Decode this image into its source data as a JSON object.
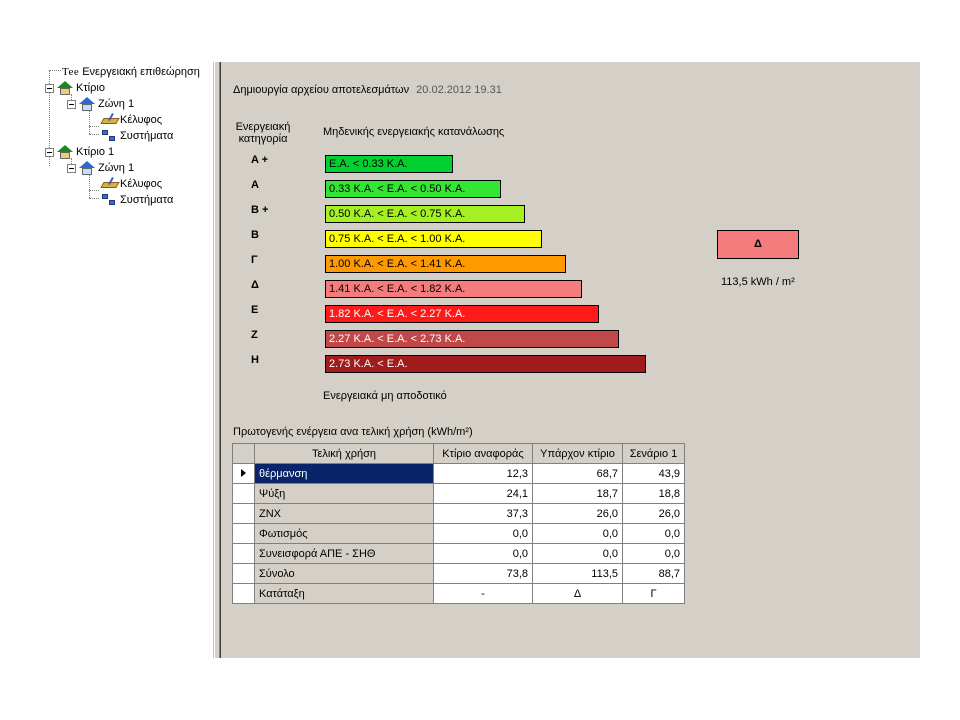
{
  "tree": {
    "root_prefix": "Tee",
    "root_label": "Ενεργειακή επιθεώρηση",
    "nodes": [
      {
        "label": "Κτίριο"
      },
      {
        "label": "Ζώνη 1"
      },
      {
        "label": "Κέλυφος"
      },
      {
        "label": "Συστήματα"
      },
      {
        "label": "Κτίριο 1"
      },
      {
        "label": "Ζώνη 1"
      },
      {
        "label": "Κέλυφος"
      },
      {
        "label": "Συστήματα"
      }
    ]
  },
  "main": {
    "file_created_label": "Δημιουργία αρχείου αποτελεσμάτων",
    "file_created_date": "20.02.2012 19.31",
    "category_header_line1": "Ενεργειακή",
    "category_header_line2": "κατηγορία",
    "zero_consumption_label": "Μηδενικής ενεργειακής κατανάλωσης",
    "non_efficient_label": "Ενεργειακά μη αποδοτικό",
    "rating_letter": "Δ",
    "rating_value": "113,5 kWh / m²",
    "categories": [
      {
        "letter": "A +",
        "range": "Ε.Α. < 0.33 Κ.Α.",
        "color": "#00d030"
      },
      {
        "letter": "A",
        "range": "0.33 Κ.Α. < Ε.Α. < 0.50 Κ.Α.",
        "color": "#33e633"
      },
      {
        "letter": "B +",
        "range": "0.50 Κ.Α. < Ε.Α. < 0.75 Κ.Α.",
        "color": "#a4f020"
      },
      {
        "letter": "B",
        "range": "0.75 Κ.Α. < Ε.Α. < 1.00 Κ.Α.",
        "color": "#ffff00"
      },
      {
        "letter": "Γ",
        "range": "1.00 Κ.Α. < Ε.Α. < 1.41 Κ.Α.",
        "color": "#ff9900"
      },
      {
        "letter": "Δ",
        "range": "1.41 Κ.Α. < Ε.Α. < 1.82 Κ.Α.",
        "color": "#f47c7c"
      },
      {
        "letter": "Ε",
        "range": "1.82 Κ.Α. < Ε.Α. < 2.27 Κ.Α.",
        "color": "#ff1a1a"
      },
      {
        "letter": "Ζ",
        "range": "2.27 Κ.Α. < Ε.Α. < 2.73 Κ.Α.",
        "color": "#c04848"
      },
      {
        "letter": "Η",
        "range": "2.73 Κ.Α. < Ε.Α.",
        "color": "#a01c1c"
      }
    ],
    "table_title": "Πρωτογενής ενέργεια ανα τελική χρήση (kWh/m²)",
    "table": {
      "headers": [
        "Τελική χρήση",
        "Κτίριο αναφοράς",
        "Υπάρχον κτίριο",
        "Σενάριο 1"
      ],
      "rows": [
        [
          "θέρμανση",
          "12,3",
          "68,7",
          "43,9"
        ],
        [
          "Ψύξη",
          "24,1",
          "18,7",
          "18,8"
        ],
        [
          "ΖΝΧ",
          "37,3",
          "26,0",
          "26,0"
        ],
        [
          "Φωτισμός",
          "0,0",
          "0,0",
          "0,0"
        ],
        [
          "Συνεισφορά ΑΠΕ - ΣΗΘ",
          "0,0",
          "0,0",
          "0,0"
        ],
        [
          "Σύνολο",
          "73,8",
          "113,5",
          "88,7"
        ],
        [
          "Κατάταξη",
          "-",
          "Δ",
          "Γ"
        ]
      ]
    }
  }
}
